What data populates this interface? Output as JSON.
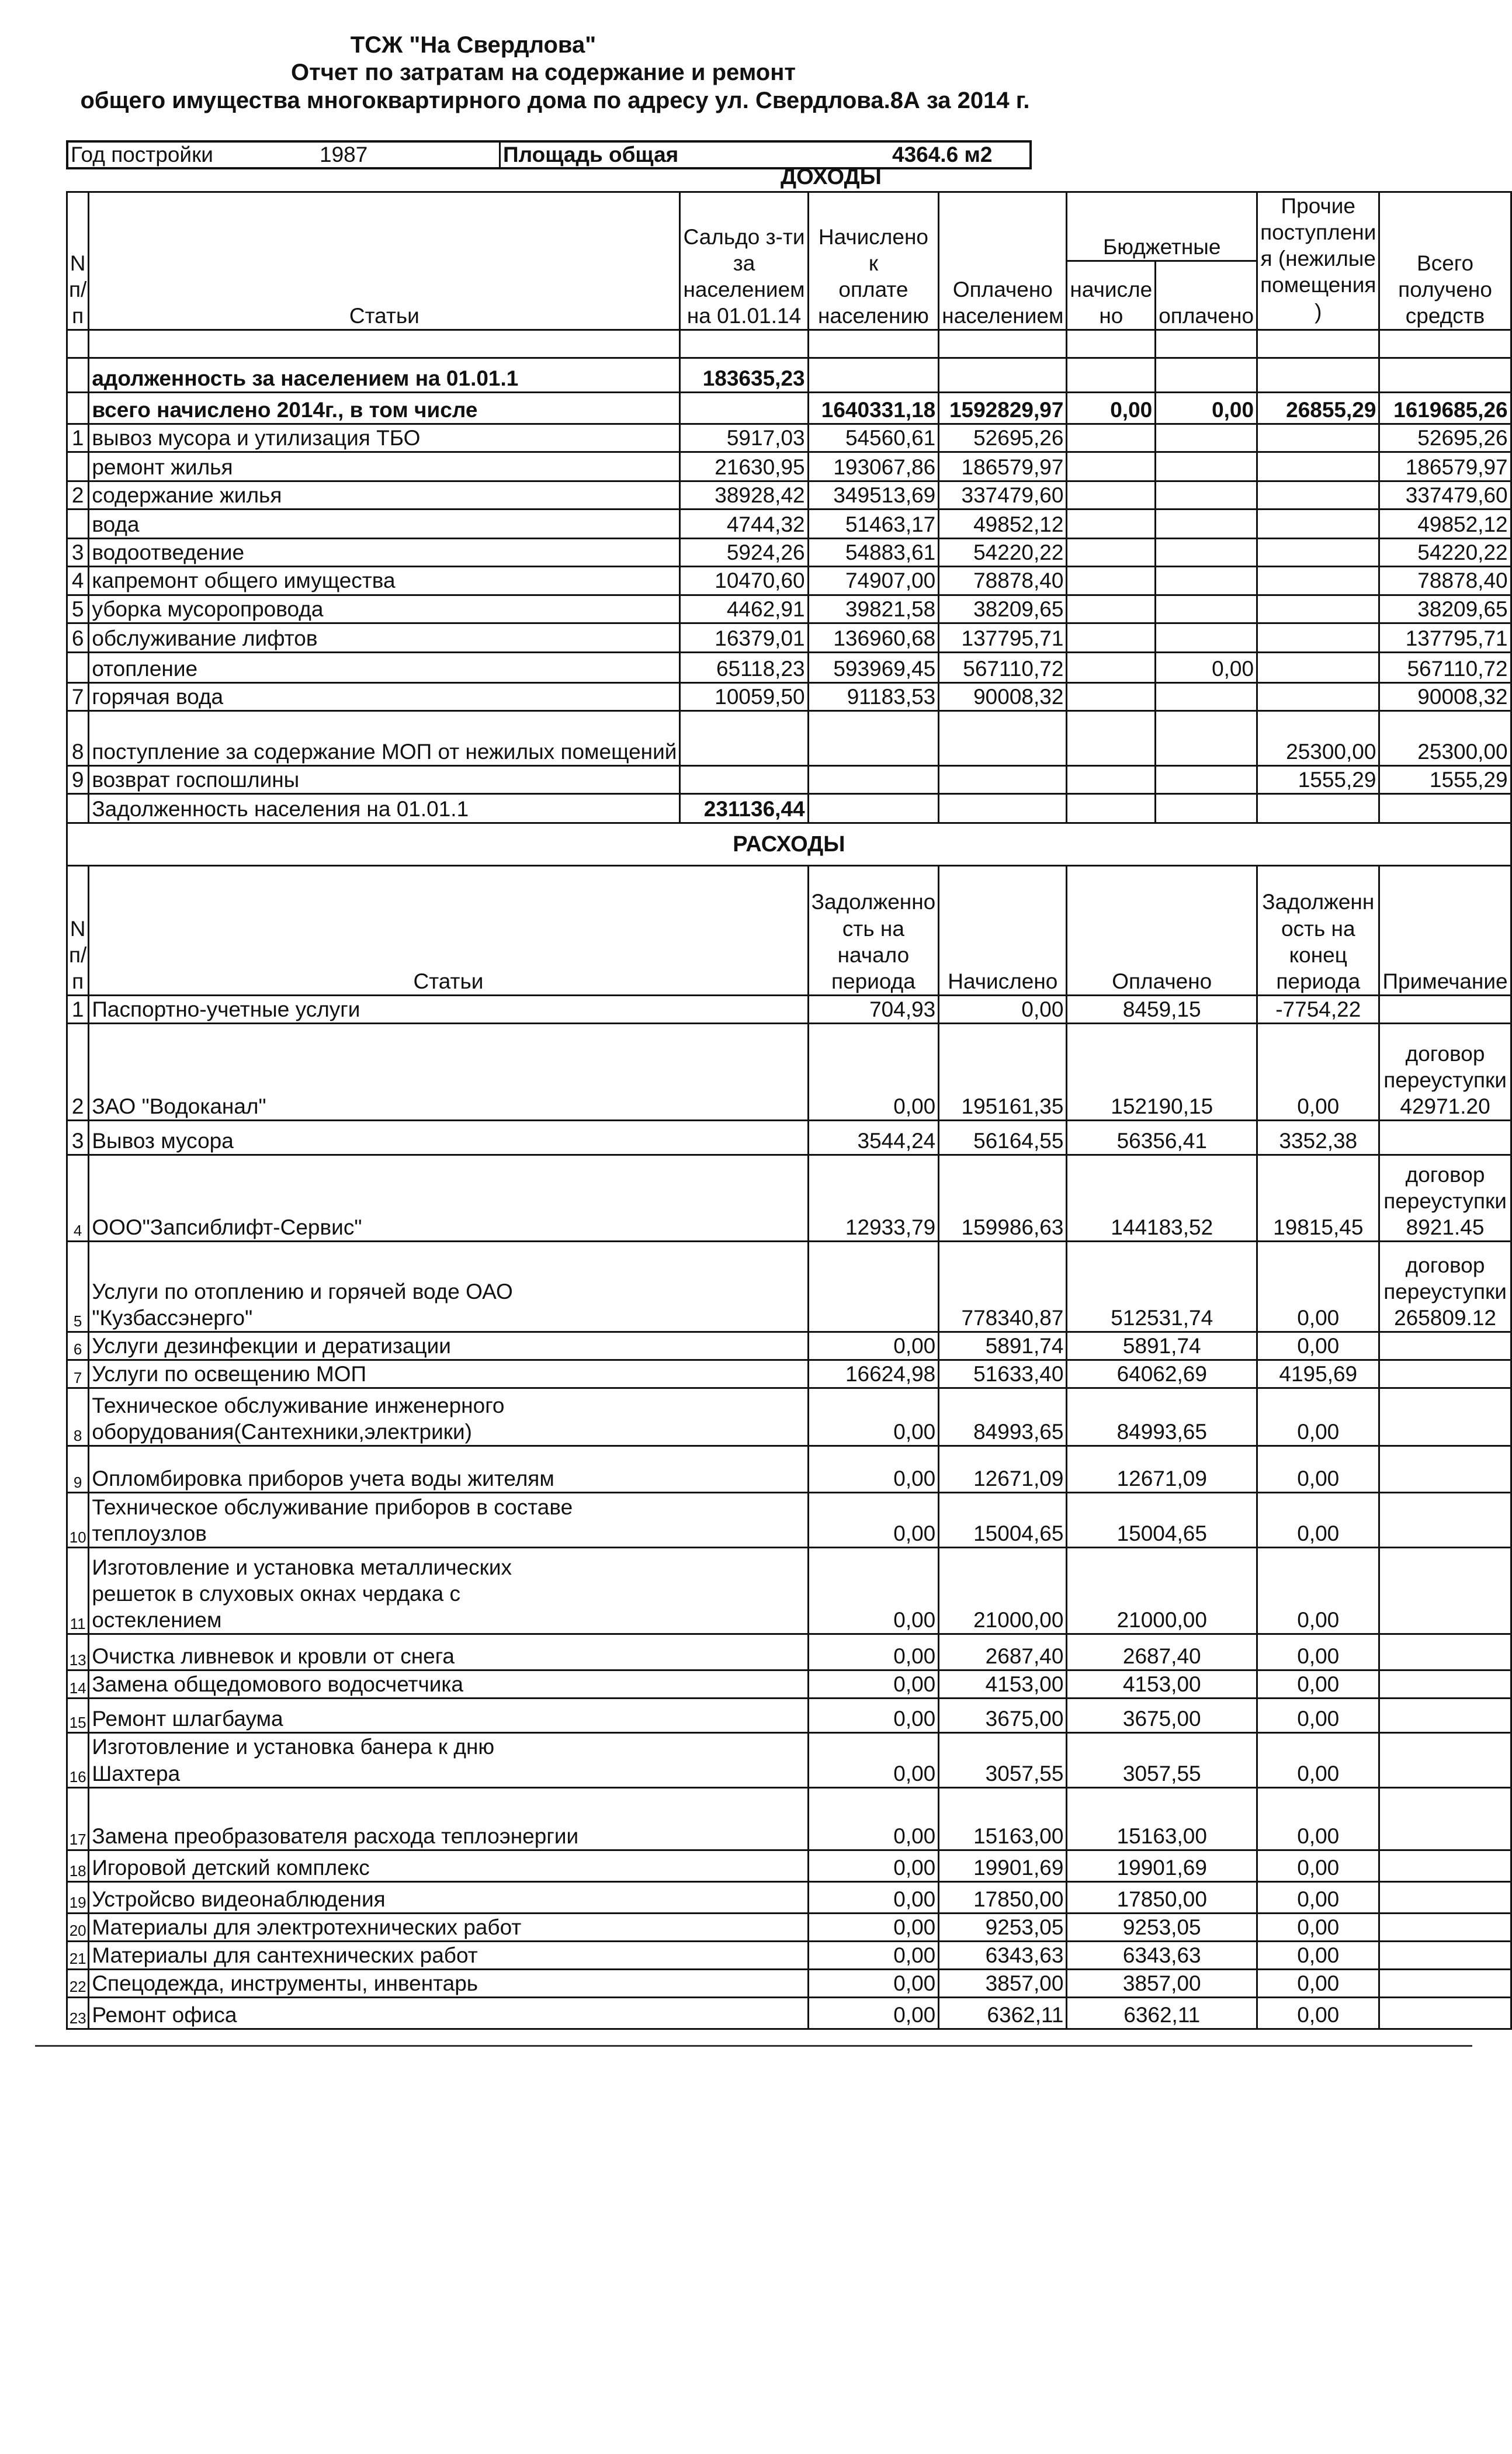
{
  "header": {
    "org": "ТСЖ \"На Свердлова\"",
    "line2": "Отчет   по затратам  на содержание и ремонт",
    "line3": "общего имущества многоквартирного дома по адресу ул. Свердлова.8А   за 2014 г."
  },
  "info": {
    "year_label": "Год постройки",
    "year_value": "1987",
    "area_label": "Площадь общая",
    "area_value": "4364.6 м2"
  },
  "income": {
    "title": "ДОХОДЫ",
    "headers": {
      "n": "N\nп/\nп",
      "item": "Статьи",
      "saldo": "Сальдо з-ти\nза\nнаселением\nна 01.01.14",
      "charged": "Начислено к\nоплате\nнаселению",
      "paid": "Оплачено\nнаселением",
      "budget": "Бюджетные",
      "b_charged": "начисле\nно",
      "b_paid": "оплачено",
      "other": "Прочие\nпоступлени\nя (нежилые\nпомещения\n)",
      "total": "Всего\nполучено\nсредств"
    },
    "rows": [
      {
        "n": "",
        "label": "адолженность за населением на 01.01.1",
        "saldo": "183635,23",
        "charged": "",
        "paid": "",
        "b_charged": "",
        "b_paid": "",
        "other": "",
        "total": "",
        "bold": true
      },
      {
        "n": "",
        "label": "всего начислено 2014г., в том числе",
        "saldo": "",
        "charged": "1640331,18",
        "paid": "1592829,97",
        "b_charged": "0,00",
        "b_paid": "0,00",
        "other": "26855,29",
        "total": "1619685,26",
        "bold": true
      },
      {
        "n": "1",
        "label": "вывоз мусора и утилизация ТБО",
        "saldo": "5917,03",
        "charged": "54560,61",
        "paid": "52695,26",
        "b_charged": "",
        "b_paid": "",
        "other": "",
        "total": "52695,26"
      },
      {
        "n": "",
        "label": "ремонт жилья",
        "saldo": "21630,95",
        "charged": "193067,86",
        "paid": "186579,97",
        "b_charged": "",
        "b_paid": "",
        "other": "",
        "total": "186579,97"
      },
      {
        "n": "2",
        "label": "содержание жилья",
        "saldo": "38928,42",
        "charged": "349513,69",
        "paid": "337479,60",
        "b_charged": "",
        "b_paid": "",
        "other": "",
        "total": "337479,60"
      },
      {
        "n": "",
        "label": "вода",
        "saldo": "4744,32",
        "charged": "51463,17",
        "paid": "49852,12",
        "b_charged": "",
        "b_paid": "",
        "other": "",
        "total": "49852,12"
      },
      {
        "n": "3",
        "label": "водоотведение",
        "saldo": "5924,26",
        "charged": "54883,61",
        "paid": "54220,22",
        "b_charged": "",
        "b_paid": "",
        "other": "",
        "total": "54220,22"
      },
      {
        "n": "4",
        "label": "капремонт общего имущества",
        "saldo": "10470,60",
        "charged": "74907,00",
        "paid": "78878,40",
        "b_charged": "",
        "b_paid": "",
        "other": "",
        "total": "78878,40"
      },
      {
        "n": "5",
        "label": "уборка мусоропровода",
        "saldo": "4462,91",
        "charged": "39821,58",
        "paid": "38209,65",
        "b_charged": "",
        "b_paid": "",
        "other": "",
        "total": "38209,65"
      },
      {
        "n": "6",
        "label": "обслуживание лифтов",
        "saldo": "16379,01",
        "charged": "136960,68",
        "paid": "137795,71",
        "b_charged": "",
        "b_paid": "",
        "other": "",
        "total": "137795,71"
      },
      {
        "n": "",
        "label": "отопление",
        "saldo": "65118,23",
        "charged": "593969,45",
        "paid": "567110,72",
        "b_charged": "",
        "b_paid": "0,00",
        "other": "",
        "total": "567110,72"
      },
      {
        "n": "7",
        "label": "горячая вода",
        "saldo": "10059,50",
        "charged": "91183,53",
        "paid": "90008,32",
        "b_charged": "",
        "b_paid": "",
        "other": "",
        "total": "90008,32"
      },
      {
        "n": "8",
        "label": "поступление за содержание МОП\nот нежилых помещений",
        "saldo": "",
        "charged": "",
        "paid": "",
        "b_charged": "",
        "b_paid": "",
        "other": "25300,00",
        "total": "25300,00"
      },
      {
        "n": "9",
        "label": "возврат госпошлины",
        "saldo": "",
        "charged": "",
        "paid": "",
        "b_charged": "",
        "b_paid": "",
        "other": "1555,29",
        "total": "1555,29"
      },
      {
        "n": "",
        "label": "Задолженность населения на 01.01.1",
        "saldo": "231136,44",
        "charged": "",
        "paid": "",
        "b_charged": "",
        "b_paid": "",
        "other": "",
        "total": "",
        "bold_saldo": true
      }
    ]
  },
  "expenses": {
    "title": "РАСХОДЫ",
    "headers": {
      "n": "N\nп/\nп",
      "item": "Статьи",
      "debt_start": "Задолженно\nсть на\nначало\nпериода",
      "charged": "Начислено",
      "paid": "Оплачено",
      "debt_end": "Задолженн\nость на\nконец\nпериода",
      "note": "Примечание"
    },
    "rows": [
      {
        "n": "1",
        "label": "Паспортно-учетные услуги",
        "debt_start": "704,93",
        "charged": "0,00",
        "paid": "8459,15",
        "debt_end": "-7754,22",
        "note": ""
      },
      {
        "n": "2",
        "label": "ЗАО \"Водоканал\"",
        "debt_start": "0,00",
        "charged": "195161,35",
        "paid": "152190,15",
        "debt_end": "0,00",
        "note": "договор\nпереуступки\n42971.20"
      },
      {
        "n": "3",
        "label": "Вывоз мусора",
        "debt_start": "3544,24",
        "charged": "56164,55",
        "paid": "56356,41",
        "debt_end": "3352,38",
        "note": ""
      },
      {
        "n": "4",
        "label": "ООО\"Запсиблифт-Сервис\"",
        "debt_start": "12933,79",
        "charged": "159986,63",
        "paid": "144183,52",
        "debt_end": "19815,45",
        "note": "договор\nпереуступки\n8921.45"
      },
      {
        "n": "5",
        "label": "Услуги по отоплению и горячей воде ОАО\n\"Кузбассэнерго\"",
        "debt_start": "",
        "charged": "778340,87",
        "paid": "512531,74",
        "debt_end": "0,00",
        "note": "договор\nпереуступки\n265809.12"
      },
      {
        "n": "6",
        "label": "Услуги дезинфекции и дератизации",
        "debt_start": "0,00",
        "charged": "5891,74",
        "paid": "5891,74",
        "debt_end": "0,00",
        "note": ""
      },
      {
        "n": "7",
        "label": "Услуги по освещению МОП",
        "debt_start": "16624,98",
        "charged": "51633,40",
        "paid": "64062,69",
        "debt_end": "4195,69",
        "note": ""
      },
      {
        "n": "8",
        "label": "Техническое обслуживание инженерного\nоборудования(Сантехники,электрики)",
        "debt_start": "0,00",
        "charged": "84993,65",
        "paid": "84993,65",
        "debt_end": "0,00",
        "note": ""
      },
      {
        "n": "9",
        "label": "Опломбировка приборов учета воды жителям",
        "debt_start": "0,00",
        "charged": "12671,09",
        "paid": "12671,09",
        "debt_end": "0,00",
        "note": ""
      },
      {
        "n": "10",
        "label": "Техническое обслуживание приборов в составе\nтеплоузлов",
        "debt_start": "0,00",
        "charged": "15004,65",
        "paid": "15004,65",
        "debt_end": "0,00",
        "note": ""
      },
      {
        "n": "11",
        "label": "Изготовление и установка металлических\nрешеток в слуховых окнах чердака с\nостеклением",
        "debt_start": "0,00",
        "charged": "21000,00",
        "paid": "21000,00",
        "debt_end": "0,00",
        "note": ""
      },
      {
        "n": "13",
        "label": "Очистка  ливневок и кровли от снега",
        "debt_start": "0,00",
        "charged": "2687,40",
        "paid": "2687,40",
        "debt_end": "0,00",
        "note": ""
      },
      {
        "n": "14",
        "label": "Замена общедомового  водосчетчика",
        "debt_start": "0,00",
        "charged": "4153,00",
        "paid": "4153,00",
        "debt_end": "0,00",
        "note": ""
      },
      {
        "n": "15",
        "label": "Ремонт шлагбаума",
        "debt_start": "0,00",
        "charged": "3675,00",
        "paid": "3675,00",
        "debt_end": "0,00",
        "note": ""
      },
      {
        "n": "16",
        "label": "Изготовление и установка банера к дню\nШахтера",
        "debt_start": "0,00",
        "charged": "3057,55",
        "paid": "3057,55",
        "debt_end": "0,00",
        "note": ""
      },
      {
        "n": "17",
        "label": "Замена преобразователя расхода теплоэнергии",
        "debt_start": "0,00",
        "charged": "15163,00",
        "paid": "15163,00",
        "debt_end": "0,00",
        "note": ""
      },
      {
        "n": "18",
        "label": "Игоровой детский комплекс",
        "debt_start": "0,00",
        "charged": "19901,69",
        "paid": "19901,69",
        "debt_end": "0,00",
        "note": ""
      },
      {
        "n": "19",
        "label": "Устройсво видеонаблюдения",
        "debt_start": "0,00",
        "charged": "17850,00",
        "paid": "17850,00",
        "debt_end": "0,00",
        "note": ""
      },
      {
        "n": "20",
        "label": "Материалы для электротехнических работ",
        "debt_start": "0,00",
        "charged": "9253,05",
        "paid": "9253,05",
        "debt_end": "0,00",
        "note": ""
      },
      {
        "n": "21",
        "label": "Материалы для сантехнических работ",
        "debt_start": "0,00",
        "charged": "6343,63",
        "paid": "6343,63",
        "debt_end": "0,00",
        "note": ""
      },
      {
        "n": "22",
        "label": "Спецодежда, инструменты, инвентарь",
        "debt_start": "0,00",
        "charged": "3857,00",
        "paid": "3857,00",
        "debt_end": "0,00",
        "note": ""
      },
      {
        "n": "23",
        "label": "Ремонт офиса",
        "debt_start": "0,00",
        "charged": "6362,11",
        "paid": "6362,11",
        "debt_end": "0,00",
        "note": ""
      }
    ]
  }
}
